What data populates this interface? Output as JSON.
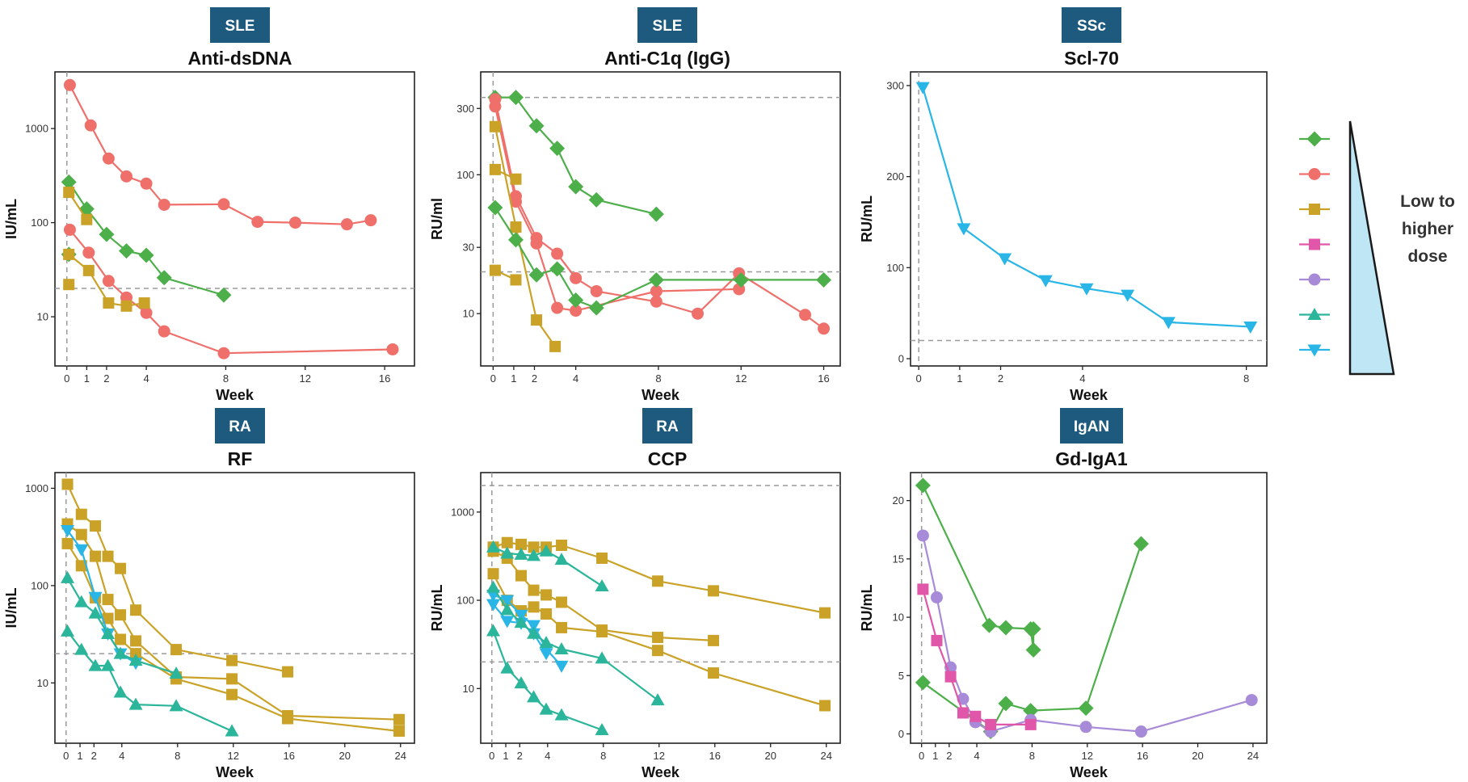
{
  "colors": {
    "green": "#4daf4a",
    "red": "#ef6f6a",
    "gold": "#c9a227",
    "pink": "#e056a8",
    "purple": "#a88bd8",
    "teal": "#2bb59a",
    "blue": "#29b6e6",
    "badge": "#1d5a7e",
    "wedge_fill": "#bfe6f5"
  },
  "legend": {
    "items": [
      {
        "color": "green",
        "marker": "diamond"
      },
      {
        "color": "red",
        "marker": "circle"
      },
      {
        "color": "gold",
        "marker": "square"
      },
      {
        "color": "pink",
        "marker": "square"
      },
      {
        "color": "purple",
        "marker": "circle"
      },
      {
        "color": "teal",
        "marker": "triangle-up"
      },
      {
        "color": "blue",
        "marker": "triangle-down"
      }
    ],
    "dose_label": [
      "Low to",
      "higher",
      "dose"
    ]
  },
  "chart_data": [
    {
      "id": "anti-dsdna",
      "type": "line",
      "badge": "SLE",
      "title": "Anti-dsDNA",
      "xlabel": "Week",
      "ylabel": "IU/mL",
      "scale": "log",
      "ylim": [
        3,
        4000
      ],
      "xlim": [
        -0.6,
        17.5
      ],
      "xticks": [
        0,
        1,
        2,
        4,
        8,
        12,
        16
      ],
      "yticks": [
        10,
        100,
        1000
      ],
      "yticklabels": [
        "10",
        "100",
        "1000"
      ],
      "threshold": 20,
      "series": [
        {
          "color": "red",
          "marker": "circle",
          "x": [
            0.15,
            1.2,
            2.1,
            3,
            4,
            4.9,
            7.9,
            9.6,
            11.5,
            14.1,
            15.3
          ],
          "y": [
            2900,
            1080,
            480,
            310,
            260,
            155,
            157,
            102,
            100,
            96,
            106
          ]
        },
        {
          "color": "green",
          "marker": "diamond",
          "x": [
            0.1,
            1,
            2,
            3,
            4,
            4.9,
            7.9
          ],
          "y": [
            270,
            140,
            75,
            50,
            45,
            26,
            17
          ]
        },
        {
          "color": "gold",
          "marker": "square",
          "x": [
            0.1,
            1
          ],
          "y": [
            210,
            108
          ]
        },
        {
          "color": "red",
          "marker": "circle",
          "x": [
            0.15,
            1.1,
            2.1,
            3,
            4,
            4.9,
            7.9,
            16.4
          ],
          "y": [
            84,
            48,
            24,
            16,
            11,
            7,
            4.1,
            4.5
          ]
        },
        {
          "color": "green",
          "marker": "diamond",
          "x": [
            0.1
          ],
          "y": [
            46
          ]
        },
        {
          "color": "gold",
          "marker": "square",
          "x": [
            0.1,
            1.1,
            2.1,
            3,
            3.9
          ],
          "y": [
            46,
            31,
            14,
            13,
            14
          ]
        },
        {
          "color": "gold",
          "marker": "square",
          "x": [
            0.1
          ],
          "y": [
            22
          ]
        }
      ]
    },
    {
      "id": "anti-c1q",
      "type": "line",
      "badge": "SLE",
      "title": "Anti-C1q (IgG)",
      "xlabel": "Week",
      "ylabel": "RU/ml",
      "scale": "log",
      "ylim": [
        4.2,
        550
      ],
      "xlim": [
        -0.6,
        16.8
      ],
      "xticks": [
        0,
        1,
        2,
        4,
        8,
        12,
        16
      ],
      "yticks": [
        10,
        30,
        100,
        300
      ],
      "yticklabels": [
        "10",
        "30",
        "100",
        "300"
      ],
      "threshold": 360,
      "threshold2": 20,
      "series": [
        {
          "color": "green",
          "marker": "diamond",
          "x": [
            0.1,
            1.1,
            2.1,
            3.1,
            4,
            5,
            7.9
          ],
          "y": [
            360,
            360,
            225,
            155,
            82,
            66,
            52
          ]
        },
        {
          "color": "red",
          "marker": "circle",
          "x": [
            0.1,
            1.1,
            2.1,
            3.1,
            4,
            5,
            7.9,
            9.9,
            11.9,
            15.1,
            16
          ],
          "y": [
            350,
            70,
            35,
            27,
            18,
            14.5,
            12.2,
            10,
            19.5,
            9.8,
            7.8
          ]
        },
        {
          "color": "red",
          "marker": "circle",
          "x": [
            0.1,
            1.1,
            2.1,
            3.1,
            4,
            7.9,
            11.9
          ],
          "y": [
            310,
            64,
            32,
            11,
            10.5,
            14.5,
            15
          ]
        },
        {
          "color": "gold",
          "marker": "square",
          "x": [
            0.1,
            1.1,
            2.1,
            3
          ],
          "y": [
            222,
            42,
            9,
            5.8
          ]
        },
        {
          "color": "gold",
          "marker": "square",
          "x": [
            0.1,
            1.1
          ],
          "y": [
            109,
            93
          ]
        },
        {
          "color": "green",
          "marker": "diamond",
          "x": [
            0.1,
            1.1,
            2.1,
            3.1,
            4,
            5,
            7.9,
            12,
            16
          ],
          "y": [
            58,
            34,
            19,
            21,
            12.5,
            11,
            17.5,
            17.5,
            17.5
          ]
        },
        {
          "color": "gold",
          "marker": "square",
          "x": [
            0.1,
            1.1
          ],
          "y": [
            20.5,
            17.5
          ]
        }
      ]
    },
    {
      "id": "scl-70",
      "type": "line",
      "badge": "SSc",
      "title": "Scl-70",
      "xlabel": "Week",
      "ylabel": "RU/mL",
      "scale": "linear",
      "ylim": [
        -8,
        315
      ],
      "xlim": [
        -0.2,
        8.5
      ],
      "xticks": [
        0,
        1,
        2,
        4,
        8
      ],
      "yticks": [
        0,
        100,
        200,
        300
      ],
      "yticklabels": [
        "0",
        "100",
        "200",
        "300"
      ],
      "threshold": 20,
      "series": [
        {
          "color": "blue",
          "marker": "triangle-down",
          "x": [
            0.1,
            1.1,
            2.1,
            3.1,
            4.1,
            5.1,
            6.1,
            8.1
          ],
          "y": [
            298,
            143,
            110,
            86,
            77,
            70,
            40,
            35
          ]
        }
      ]
    },
    {
      "id": "rf",
      "type": "line",
      "badge": "RA",
      "title": "RF",
      "xlabel": "Week",
      "ylabel": "IU/mL",
      "scale": "log",
      "ylim": [
        2.4,
        1450
      ],
      "xlim": [
        -0.8,
        25
      ],
      "xticks": [
        0,
        1,
        2,
        4,
        8,
        12,
        16,
        20,
        24
      ],
      "yticks": [
        10,
        100,
        1000
      ],
      "yticklabels": [
        "10",
        "100",
        "1000"
      ],
      "threshold": 20,
      "series": [
        {
          "color": "gold",
          "marker": "square",
          "x": [
            0.1,
            1.1,
            2.1,
            3,
            3.9,
            5,
            7.9,
            11.9,
            15.9
          ],
          "y": [
            1100,
            540,
            410,
            200,
            150,
            56,
            22,
            17,
            13
          ]
        },
        {
          "color": "gold",
          "marker": "square",
          "x": [
            0.1,
            1.1,
            2.1,
            3,
            3.9,
            5,
            7.9,
            11.9,
            15.9,
            23.9
          ],
          "y": [
            430,
            335,
            200,
            72,
            50,
            27,
            11.5,
            11,
            4.6,
            4.2
          ]
        },
        {
          "color": "gold",
          "marker": "square",
          "x": [
            0.1,
            1.1,
            2.1,
            3,
            3.9,
            5,
            7.9,
            11.9,
            15.9,
            23.9
          ],
          "y": [
            270,
            160,
            75,
            46,
            28,
            20,
            11,
            7.6,
            4.3,
            3.2
          ]
        },
        {
          "color": "blue",
          "marker": "triangle-down",
          "x": [
            0.1,
            1.1,
            2.1,
            3,
            3.9,
            5
          ],
          "y": [
            370,
            235,
            76,
            32,
            20,
            16
          ]
        },
        {
          "color": "teal",
          "marker": "triangle-up",
          "x": [
            0.1,
            1.1,
            2.1,
            3,
            3.9,
            5,
            7.9
          ],
          "y": [
            120,
            68,
            52,
            32,
            20,
            17,
            12.5
          ]
        },
        {
          "color": "teal",
          "marker": "triangle-up",
          "x": [
            0.1,
            1.1,
            2.1,
            3,
            3.9,
            5,
            7.9,
            11.9
          ],
          "y": [
            34,
            22,
            15,
            15,
            8,
            6,
            5.8,
            3.2
          ]
        }
      ]
    },
    {
      "id": "ccp",
      "type": "line",
      "badge": "RA",
      "title": "CCP",
      "xlabel": "Week",
      "ylabel": "RU/mL",
      "scale": "log",
      "ylim": [
        2.4,
        2800
      ],
      "xlim": [
        -0.8,
        25
      ],
      "xticks": [
        0,
        1,
        2,
        4,
        8,
        12,
        16,
        20,
        24
      ],
      "yticks": [
        10,
        100,
        1000
      ],
      "yticklabels": [
        "10",
        "100",
        "1000"
      ],
      "threshold": 2000,
      "threshold2": 20,
      "series": [
        {
          "color": "gold",
          "marker": "square",
          "x": [
            0.1,
            1.1,
            2.1,
            3,
            3.9,
            5,
            7.9,
            11.9,
            15.9,
            23.9
          ],
          "y": [
            400,
            450,
            430,
            400,
            400,
            420,
            300,
            165,
            128,
            72
          ]
        },
        {
          "color": "gold",
          "marker": "square",
          "x": [
            0.1,
            1.1,
            2.1,
            3,
            3.9,
            5,
            7.9,
            11.9,
            15.9
          ],
          "y": [
            360,
            300,
            190,
            130,
            115,
            95,
            46,
            38,
            35
          ]
        },
        {
          "color": "gold",
          "marker": "square",
          "x": [
            0.1,
            1.1,
            2.1,
            3,
            3.9,
            5,
            7.9,
            11.9,
            15.9,
            23.9
          ],
          "y": [
            200,
            100,
            76,
            84,
            70,
            49,
            44,
            27,
            15,
            6.4
          ]
        },
        {
          "color": "teal",
          "marker": "triangle-up",
          "x": [
            0.1,
            1.1,
            2.1,
            3,
            3.9,
            5,
            7.9
          ],
          "y": [
            400,
            340,
            330,
            320,
            360,
            290,
            145
          ]
        },
        {
          "color": "blue",
          "marker": "triangle-down",
          "x": [
            0.1,
            1.1,
            2.1,
            3,
            3.9,
            5
          ],
          "y": [
            115,
            100,
            68,
            52,
            28,
            18
          ]
        },
        {
          "color": "blue",
          "marker": "triangle-down",
          "x": [
            0.1,
            1.1,
            2.1,
            3,
            3.9
          ],
          "y": [
            90,
            58,
            55,
            42,
            25
          ]
        },
        {
          "color": "teal",
          "marker": "triangle-up",
          "x": [
            0.1,
            1.1,
            2.1,
            3,
            3.9,
            5,
            7.9,
            11.9
          ],
          "y": [
            140,
            78,
            56,
            42,
            33,
            28,
            22,
            7.4
          ]
        },
        {
          "color": "teal",
          "marker": "triangle-up",
          "x": [
            0.1,
            1.1,
            2.1,
            3,
            3.9,
            5,
            7.9
          ],
          "y": [
            45,
            17,
            11.5,
            8,
            5.8,
            5,
            3.4
          ]
        }
      ]
    },
    {
      "id": "gd-iga1",
      "type": "line",
      "badge": "IgAN",
      "title": "Gd-IgA1",
      "xlabel": "Week",
      "ylabel": "RU/mL",
      "scale": "linear",
      "ylim": [
        -0.8,
        22.4
      ],
      "xlim": [
        -0.8,
        25
      ],
      "xticks": [
        0,
        1,
        2,
        4,
        8,
        12,
        16,
        20,
        24
      ],
      "yticks": [
        0,
        5,
        10,
        15,
        20
      ],
      "yticklabels": [
        "0",
        "5",
        "10",
        "15",
        "20"
      ],
      "threshold": null,
      "series": [
        {
          "color": "green",
          "marker": "diamond",
          "x": [
            0.1,
            4.9,
            6.1,
            7.9,
            8.1,
            8.1
          ],
          "y": [
            21.3,
            9.3,
            9.1,
            9.0,
            7.2,
            9.0
          ]
        },
        {
          "color": "green",
          "marker": "diamond",
          "x": [
            0.1,
            5,
            6.1,
            7.9,
            11.9,
            15.9
          ],
          "y": [
            4.4,
            0.2,
            2.6,
            2.0,
            2.2,
            16.3
          ]
        },
        {
          "color": "purple",
          "marker": "circle",
          "x": [
            0.1,
            1.1,
            2.1,
            3,
            3.9,
            5,
            7.9,
            11.9,
            15.9,
            23.9
          ],
          "y": [
            17.0,
            11.7,
            5.7,
            3.0,
            1.0,
            0.2,
            1.2,
            0.6,
            0.2,
            2.9
          ]
        },
        {
          "color": "pink",
          "marker": "square",
          "x": [
            0.1,
            1.1,
            2.1,
            3,
            3.9,
            5,
            7.9
          ],
          "y": [
            12.4,
            8.0,
            4.9,
            1.8,
            1.5,
            0.8,
            0.8
          ]
        }
      ]
    }
  ]
}
